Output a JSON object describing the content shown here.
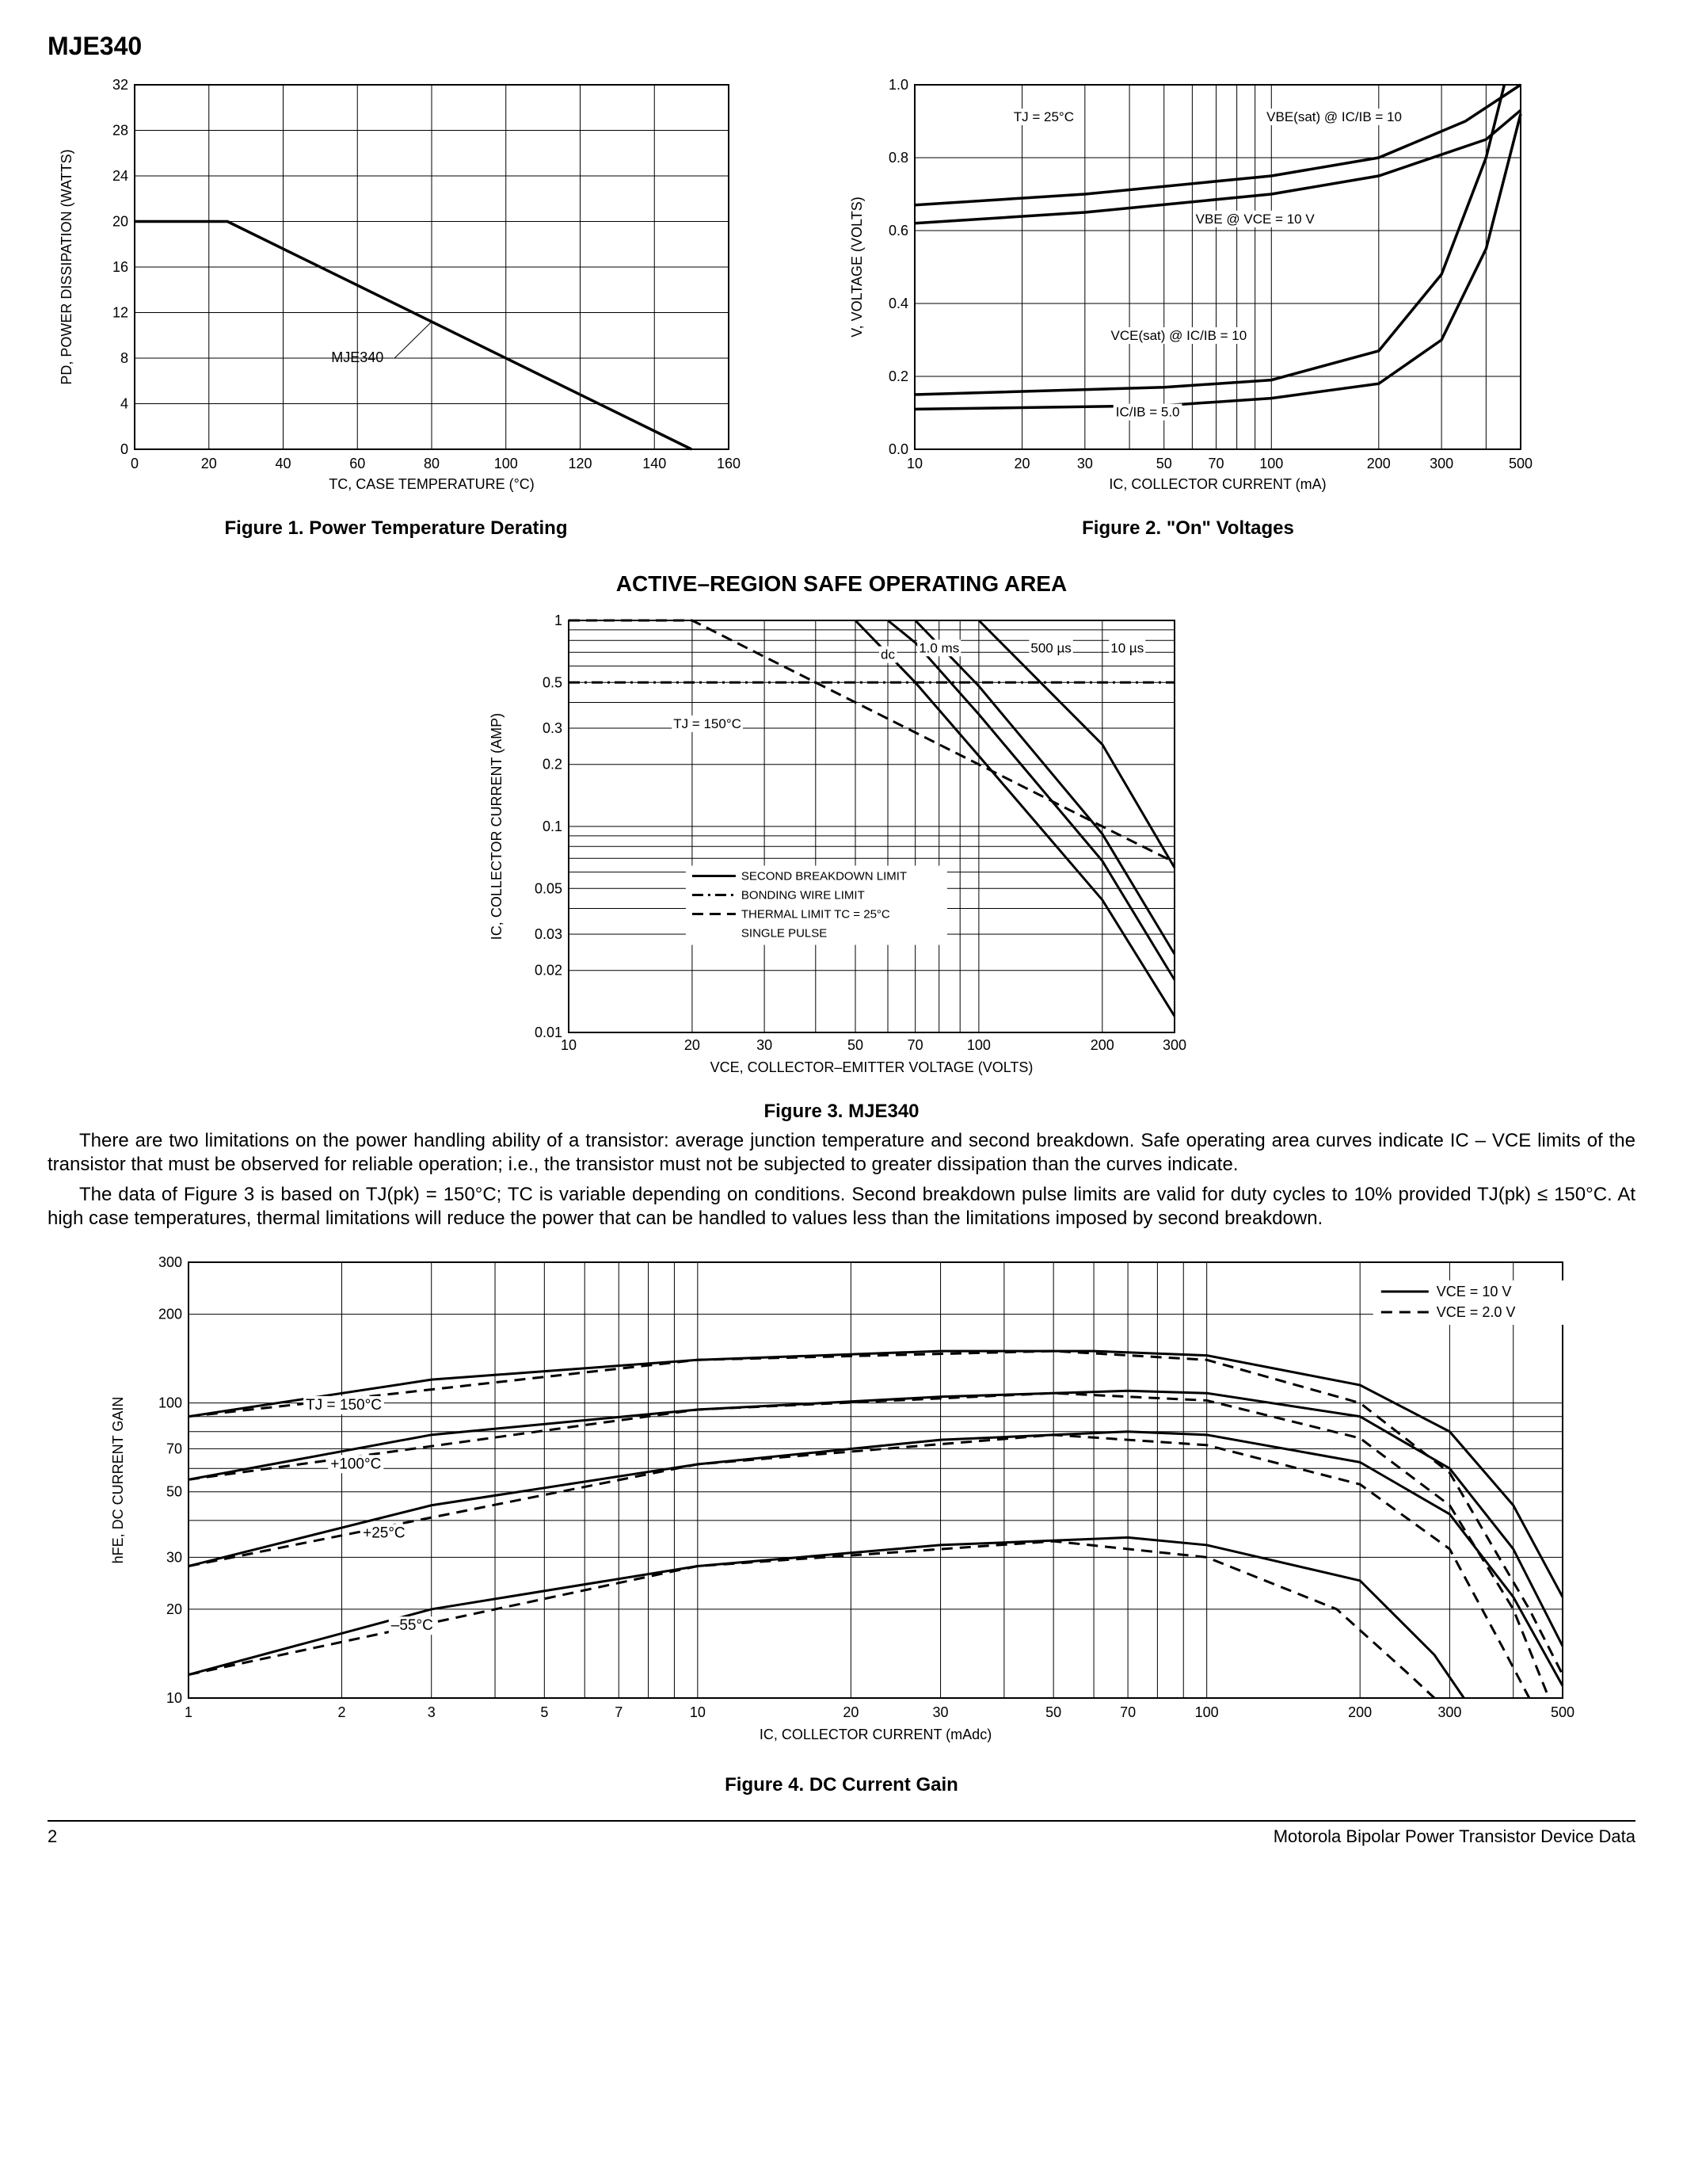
{
  "page": {
    "part_number": "MJE340",
    "section_title": "ACTIVE–REGION SAFE OPERATING AREA",
    "body_p1": "There are two limitations on the power handling ability of a transistor: average junction temperature and second breakdown. Safe operating area curves indicate IC – VCE limits of the transistor that must be observed for reliable operation; i.e., the transistor must not be subjected to greater dissipation than the curves indicate.",
    "body_p2": "The data of Figure 3 is based on TJ(pk) = 150°C; TC is variable depending on conditions. Second breakdown pulse limits are valid for duty cycles to 10% provided TJ(pk) ≤ 150°C. At high case temperatures, thermal limitations will reduce the power that can be handled to values less than the limitations imposed by second breakdown.",
    "footer_page": "2",
    "footer_text": "Motorola Bipolar Power Transistor Device Data"
  },
  "fig1": {
    "caption": "Figure 1. Power Temperature Derating",
    "xlabel": "TC, CASE TEMPERATURE (°C)",
    "ylabel": "PD, POWER DISSIPATION (WATTS)",
    "xlim": [
      0,
      160
    ],
    "ylim": [
      0,
      32
    ],
    "xticks": [
      0,
      20,
      40,
      60,
      80,
      100,
      120,
      140,
      160
    ],
    "yticks": [
      0,
      4.0,
      8.0,
      12,
      16,
      20,
      24,
      28,
      32
    ],
    "curve_label": "MJE340",
    "data": [
      [
        0,
        20
      ],
      [
        25,
        20
      ],
      [
        150,
        0
      ]
    ],
    "line_color": "#000000",
    "line_width": 3.5,
    "grid_color": "#000000",
    "background_color": "#ffffff",
    "axis_fontsize": 18,
    "tick_fontsize": 18
  },
  "fig2": {
    "caption": "Figure 2. \"On\" Voltages",
    "xlabel": "IC, COLLECTOR CURRENT (mA)",
    "ylabel": "V, VOLTAGE (VOLTS)",
    "xscale": "log",
    "xlim": [
      10,
      500
    ],
    "ylim": [
      0,
      1.0
    ],
    "xticks": [
      10,
      20,
      30,
      50,
      70,
      100,
      200,
      300,
      500
    ],
    "yticks": [
      0,
      0.2,
      0.4,
      0.6,
      0.8,
      1.0
    ],
    "temp_label": "TJ = 25°C",
    "line_color": "#000000",
    "line_width": 3.5,
    "grid_color": "#000000",
    "curves": [
      {
        "label": "VBE(sat) @ IC/IB = 10",
        "pts": [
          [
            10,
            0.67
          ],
          [
            30,
            0.7
          ],
          [
            100,
            0.75
          ],
          [
            200,
            0.8
          ],
          [
            350,
            0.9
          ],
          [
            500,
            1.0
          ]
        ]
      },
      {
        "label": "VBE @ VCE = 10 V",
        "pts": [
          [
            10,
            0.62
          ],
          [
            30,
            0.65
          ],
          [
            100,
            0.7
          ],
          [
            200,
            0.75
          ],
          [
            400,
            0.85
          ],
          [
            500,
            0.93
          ]
        ]
      },
      {
        "label": "VCE(sat) @ IC/IB = 10",
        "pts": [
          [
            10,
            0.15
          ],
          [
            50,
            0.17
          ],
          [
            100,
            0.19
          ],
          [
            200,
            0.27
          ],
          [
            300,
            0.48
          ],
          [
            400,
            0.8
          ],
          [
            450,
            1.0
          ]
        ]
      },
      {
        "label": "IC/IB = 5.0",
        "pts": [
          [
            10,
            0.11
          ],
          [
            50,
            0.12
          ],
          [
            100,
            0.14
          ],
          [
            200,
            0.18
          ],
          [
            300,
            0.3
          ],
          [
            400,
            0.55
          ],
          [
            500,
            0.92
          ]
        ]
      }
    ]
  },
  "fig3": {
    "caption": "Figure 3. MJE340",
    "xlabel": "VCE, COLLECTOR–EMITTER VOLTAGE (VOLTS)",
    "ylabel": "IC, COLLECTOR CURRENT (AMP)",
    "xscale": "log",
    "yscale": "log",
    "xlim": [
      10,
      300
    ],
    "ylim": [
      0.01,
      1.0
    ],
    "xticks": [
      10,
      20,
      30,
      50,
      70,
      100,
      200,
      300
    ],
    "yticks": [
      0.01,
      0.02,
      0.03,
      0.05,
      0.1,
      0.2,
      0.3,
      0.5,
      1.0
    ],
    "temp_label": "TJ = 150°C",
    "line_color": "#000000",
    "line_width": 3.0,
    "legend_items": [
      {
        "label": "SECOND BREAKDOWN LIMIT",
        "style": "solid"
      },
      {
        "label": "BONDING WIRE LIMIT",
        "style": "dashdot"
      },
      {
        "label": "THERMAL LIMIT TC = 25°C",
        "style": "dash"
      },
      {
        "label": "SINGLE PULSE",
        "style": "none"
      }
    ],
    "curves": [
      {
        "label": "10 µs",
        "pts": [
          [
            100,
            1.0
          ],
          [
            200,
            0.25
          ],
          [
            300,
            0.063
          ]
        ]
      },
      {
        "label": "500 µs",
        "pts": [
          [
            70,
            1.0
          ],
          [
            100,
            0.48
          ],
          [
            200,
            0.092
          ],
          [
            300,
            0.024
          ]
        ]
      },
      {
        "label": "1.0 ms",
        "pts": [
          [
            60,
            1.0
          ],
          [
            70,
            0.78
          ],
          [
            100,
            0.35
          ],
          [
            200,
            0.068
          ],
          [
            300,
            0.018
          ]
        ]
      },
      {
        "label": "dc",
        "pts": [
          [
            50,
            1.0
          ],
          [
            70,
            0.5
          ],
          [
            100,
            0.22
          ],
          [
            200,
            0.044
          ],
          [
            300,
            0.012
          ]
        ]
      }
    ],
    "bonding_wire": [
      [
        10,
        0.5
      ],
      [
        300,
        0.5
      ]
    ],
    "thermal_limit": [
      [
        10,
        1.0
      ],
      [
        20,
        1.0
      ],
      [
        50,
        0.4
      ],
      [
        100,
        0.2
      ],
      [
        200,
        0.1
      ],
      [
        300,
        0.067
      ]
    ]
  },
  "fig4": {
    "caption": "Figure 4. DC Current Gain",
    "xlabel": "IC, COLLECTOR CURRENT (mAdc)",
    "ylabel": "hFE, DC CURRENT GAIN",
    "xscale": "log",
    "yscale": "log",
    "xlim": [
      1.0,
      500
    ],
    "ylim": [
      10,
      300
    ],
    "xticks": [
      1.0,
      2.0,
      3.0,
      5.0,
      7.0,
      10,
      20,
      30,
      50,
      70,
      100,
      200,
      300,
      500
    ],
    "yticks": [
      10,
      20,
      30,
      50,
      70,
      100,
      200,
      300
    ],
    "line_color": "#000000",
    "line_width": 3.0,
    "legend": [
      {
        "label": "VCE = 10 V",
        "style": "solid"
      },
      {
        "label": "VCE = 2.0 V",
        "style": "dash"
      }
    ],
    "temp_labels": [
      "TJ = 150°C",
      "+100°C",
      "+25°C",
      "–55°C"
    ],
    "curves_solid": [
      {
        "t": "150",
        "pts": [
          [
            1,
            90
          ],
          [
            3,
            120
          ],
          [
            10,
            140
          ],
          [
            30,
            150
          ],
          [
            60,
            150
          ],
          [
            100,
            145
          ],
          [
            200,
            115
          ],
          [
            300,
            80
          ],
          [
            400,
            45
          ],
          [
            500,
            22
          ]
        ]
      },
      {
        "t": "100",
        "pts": [
          [
            1,
            55
          ],
          [
            3,
            78
          ],
          [
            10,
            95
          ],
          [
            30,
            105
          ],
          [
            70,
            110
          ],
          [
            100,
            108
          ],
          [
            200,
            90
          ],
          [
            300,
            60
          ],
          [
            400,
            32
          ],
          [
            500,
            15
          ]
        ]
      },
      {
        "t": "25",
        "pts": [
          [
            1,
            28
          ],
          [
            3,
            45
          ],
          [
            10,
            62
          ],
          [
            30,
            75
          ],
          [
            70,
            80
          ],
          [
            100,
            78
          ],
          [
            200,
            63
          ],
          [
            300,
            42
          ],
          [
            400,
            22
          ],
          [
            500,
            11
          ]
        ]
      },
      {
        "t": "-55",
        "pts": [
          [
            1,
            12
          ],
          [
            3,
            20
          ],
          [
            10,
            28
          ],
          [
            30,
            33
          ],
          [
            70,
            35
          ],
          [
            100,
            33
          ],
          [
            200,
            25
          ],
          [
            280,
            14
          ],
          [
            320,
            10
          ]
        ]
      }
    ],
    "curves_dash": [
      {
        "t": "150",
        "pts": [
          [
            1,
            90
          ],
          [
            10,
            140
          ],
          [
            50,
            150
          ],
          [
            100,
            140
          ],
          [
            200,
            100
          ],
          [
            300,
            58
          ],
          [
            430,
            20
          ],
          [
            500,
            12
          ]
        ]
      },
      {
        "t": "100",
        "pts": [
          [
            1,
            55
          ],
          [
            10,
            95
          ],
          [
            50,
            108
          ],
          [
            100,
            102
          ],
          [
            200,
            76
          ],
          [
            300,
            45
          ],
          [
            400,
            20
          ],
          [
            470,
            10
          ]
        ]
      },
      {
        "t": "25",
        "pts": [
          [
            1,
            28
          ],
          [
            10,
            62
          ],
          [
            50,
            78
          ],
          [
            100,
            72
          ],
          [
            200,
            53
          ],
          [
            300,
            32
          ],
          [
            380,
            15
          ],
          [
            430,
            10
          ]
        ]
      },
      {
        "t": "-55",
        "pts": [
          [
            1,
            12
          ],
          [
            10,
            28
          ],
          [
            50,
            34
          ],
          [
            100,
            30
          ],
          [
            180,
            20
          ],
          [
            250,
            12
          ],
          [
            280,
            10
          ]
        ]
      }
    ]
  }
}
